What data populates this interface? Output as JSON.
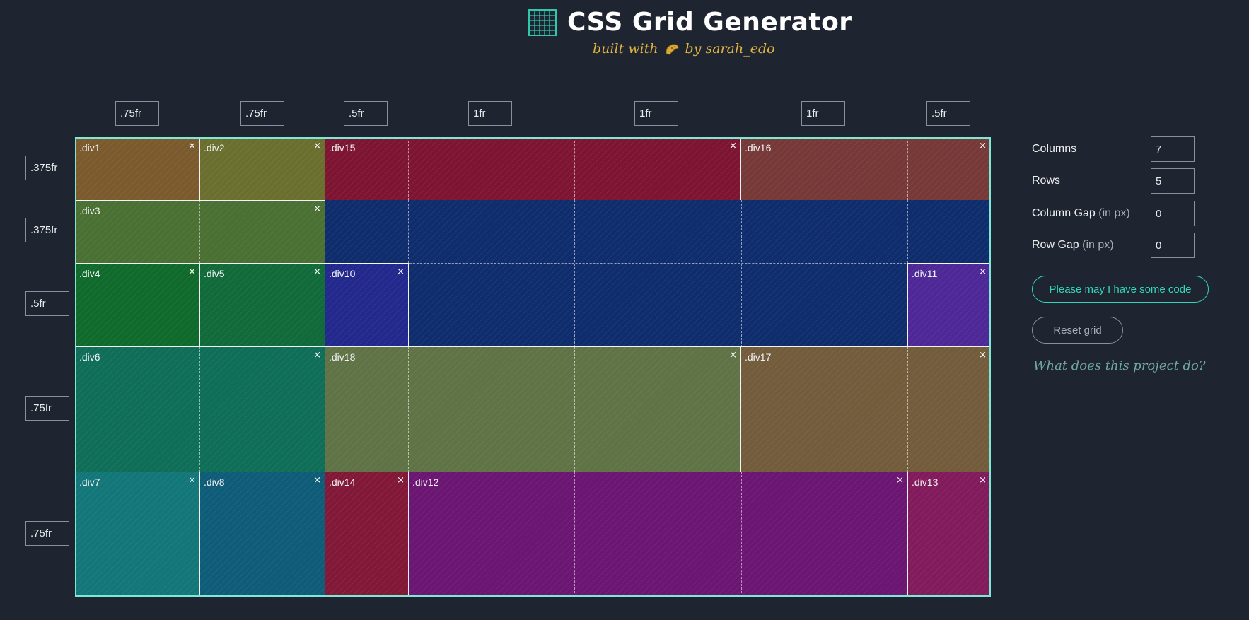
{
  "header": {
    "title": "CSS Grid Generator",
    "tagline_before": "built with",
    "tagline_after": "by sarah_edo",
    "logo_icon": "grid-logo-icon"
  },
  "columns": [
    ".75fr",
    ".75fr",
    ".5fr",
    "1fr",
    "1fr",
    "1fr",
    ".5fr"
  ],
  "rows": [
    ".375fr",
    ".375fr",
    ".5fr",
    ".75fr",
    ".75fr"
  ],
  "items": [
    {
      "label": ".div1",
      "color": "#7b5a2d"
    },
    {
      "label": ".div2",
      "color": "#6a6f2f"
    },
    {
      "label": ".div15",
      "color": "#7d1532"
    },
    {
      "label": ".div16",
      "color": "#763938"
    },
    {
      "label": ".div3",
      "color": "#4a7033"
    },
    {
      "label": "",
      "color": "#0f2d6c"
    },
    {
      "label": ".div4",
      "color": "#0f6a2c"
    },
    {
      "label": ".div5",
      "color": "#116a3a"
    },
    {
      "label": ".div10",
      "color": "#22288c"
    },
    {
      "label": ".div11",
      "color": "#4d2896"
    },
    {
      "label": ".div6",
      "color": "#0f6e58"
    },
    {
      "label": ".div18",
      "color": "#5f7346"
    },
    {
      "label": ".div17",
      "color": "#725c3c"
    },
    {
      "label": ".div7",
      "color": "#137678"
    },
    {
      "label": ".div8",
      "color": "#0f5c78"
    },
    {
      "label": ".div14",
      "color": "#821838"
    },
    {
      "label": ".div12",
      "color": "#6a1672"
    },
    {
      "label": ".div13",
      "color": "#821b5c"
    }
  ],
  "close_symbol": "×",
  "controls": {
    "columns_label": "Columns",
    "columns_value": "7",
    "rows_label": "Rows",
    "rows_value": "5",
    "col_gap_label": "Column Gap",
    "col_gap_unit": "(in px)",
    "col_gap_value": "0",
    "row_gap_label": "Row Gap",
    "row_gap_unit": "(in px)",
    "row_gap_value": "0",
    "code_button": "Please may I have some code",
    "reset_button": "Reset grid",
    "what_link": "What does this project do?"
  },
  "colors": {
    "background": "#1e2430",
    "grid_border": "#7de8d5",
    "accent": "#30d8b9",
    "tagline": "#e0b341"
  }
}
